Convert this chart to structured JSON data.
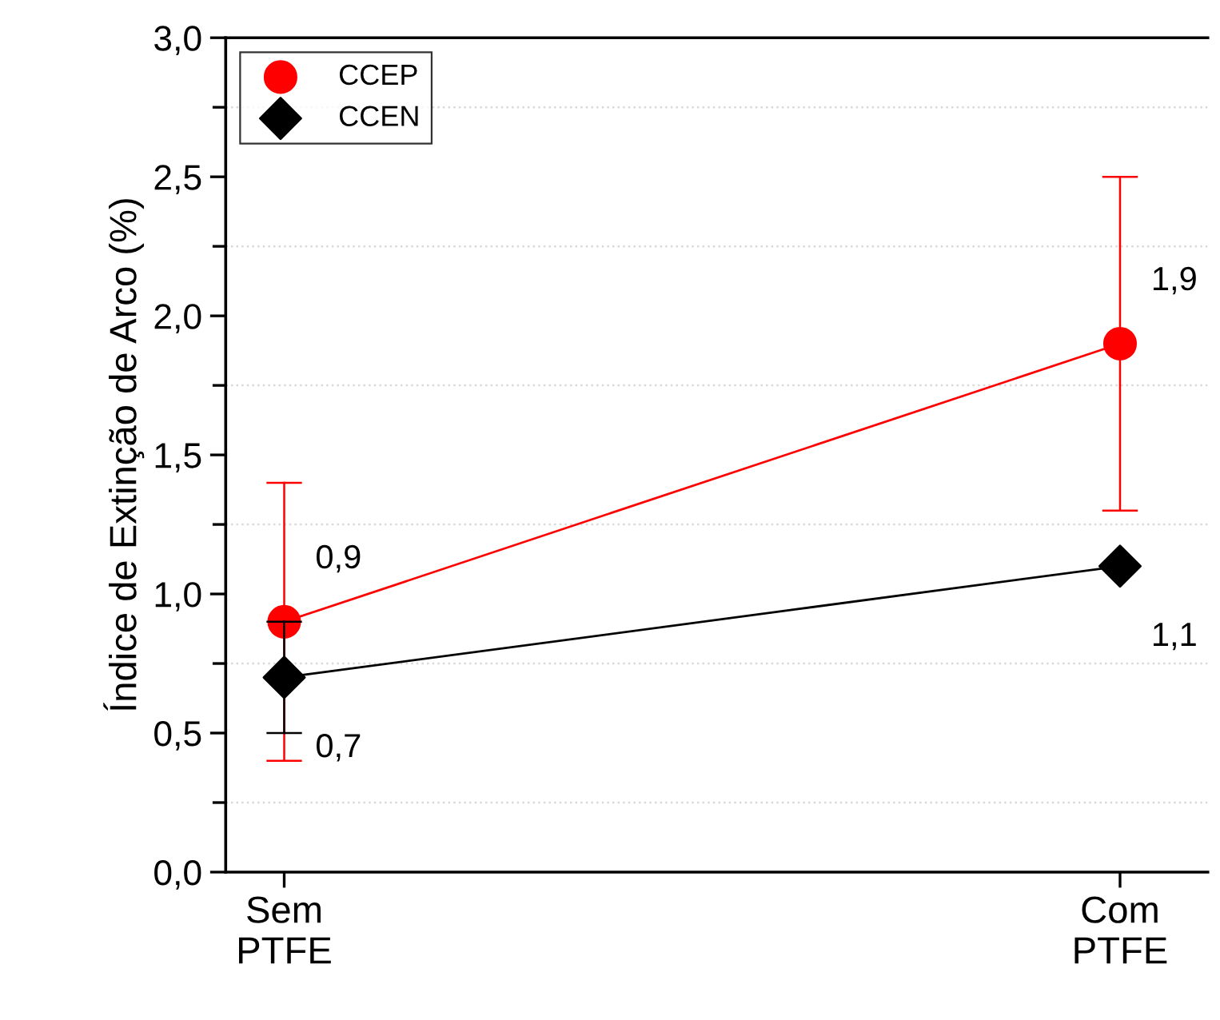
{
  "chart_data": {
    "type": "line",
    "ylabel": "Índice de Extinção de Arco (%)",
    "categories": [
      "Sem\nPTFE",
      "Com\nPTFE"
    ],
    "series": [
      {
        "name": "CCEP",
        "color": "#ff0000",
        "values": [
          0.9,
          1.9
        ],
        "errors": [
          [
            0.4,
            1.4
          ],
          [
            1.3,
            2.5
          ]
        ],
        "value_labels": [
          "0,9",
          "1,9"
        ],
        "marker": "circle"
      },
      {
        "name": "CCEN",
        "color": "#000000",
        "values": [
          0.7,
          1.1
        ],
        "errors": [
          [
            0.5,
            0.9
          ],
          null
        ],
        "value_labels": [
          "0,7",
          "1,1"
        ],
        "marker": "diamond"
      }
    ],
    "ylim": [
      0,
      3.0
    ],
    "yticks": [
      {
        "value": 0,
        "label": "0,0"
      },
      {
        "value": 0.5,
        "label": "0,5"
      },
      {
        "value": 1.0,
        "label": "1,0"
      },
      {
        "value": 1.5,
        "label": "1,5"
      },
      {
        "value": 2.0,
        "label": "2,0"
      },
      {
        "value": 2.5,
        "label": "2,5"
      },
      {
        "value": 3.0,
        "label": "3,0"
      }
    ],
    "ref_lines": [
      {
        "axis": "y",
        "value": 0.25,
        "color": "#d9d9d9",
        "line_style": "dotted"
      },
      {
        "axis": "y",
        "value": 0.75,
        "color": "#d9d9d9",
        "line_style": "dotted"
      },
      {
        "axis": "y",
        "value": 1.25,
        "color": "#d9d9d9",
        "line_style": "dotted"
      },
      {
        "axis": "y",
        "value": 1.75,
        "color": "#d9d9d9",
        "line_style": "dotted"
      },
      {
        "axis": "y",
        "value": 2.25,
        "color": "#d9d9d9",
        "line_style": "dotted"
      },
      {
        "axis": "y",
        "value": 2.75,
        "color": "#d9d9d9",
        "line_style": "dotted"
      }
    ],
    "legend": "top left",
    "line_style": "solid"
  }
}
